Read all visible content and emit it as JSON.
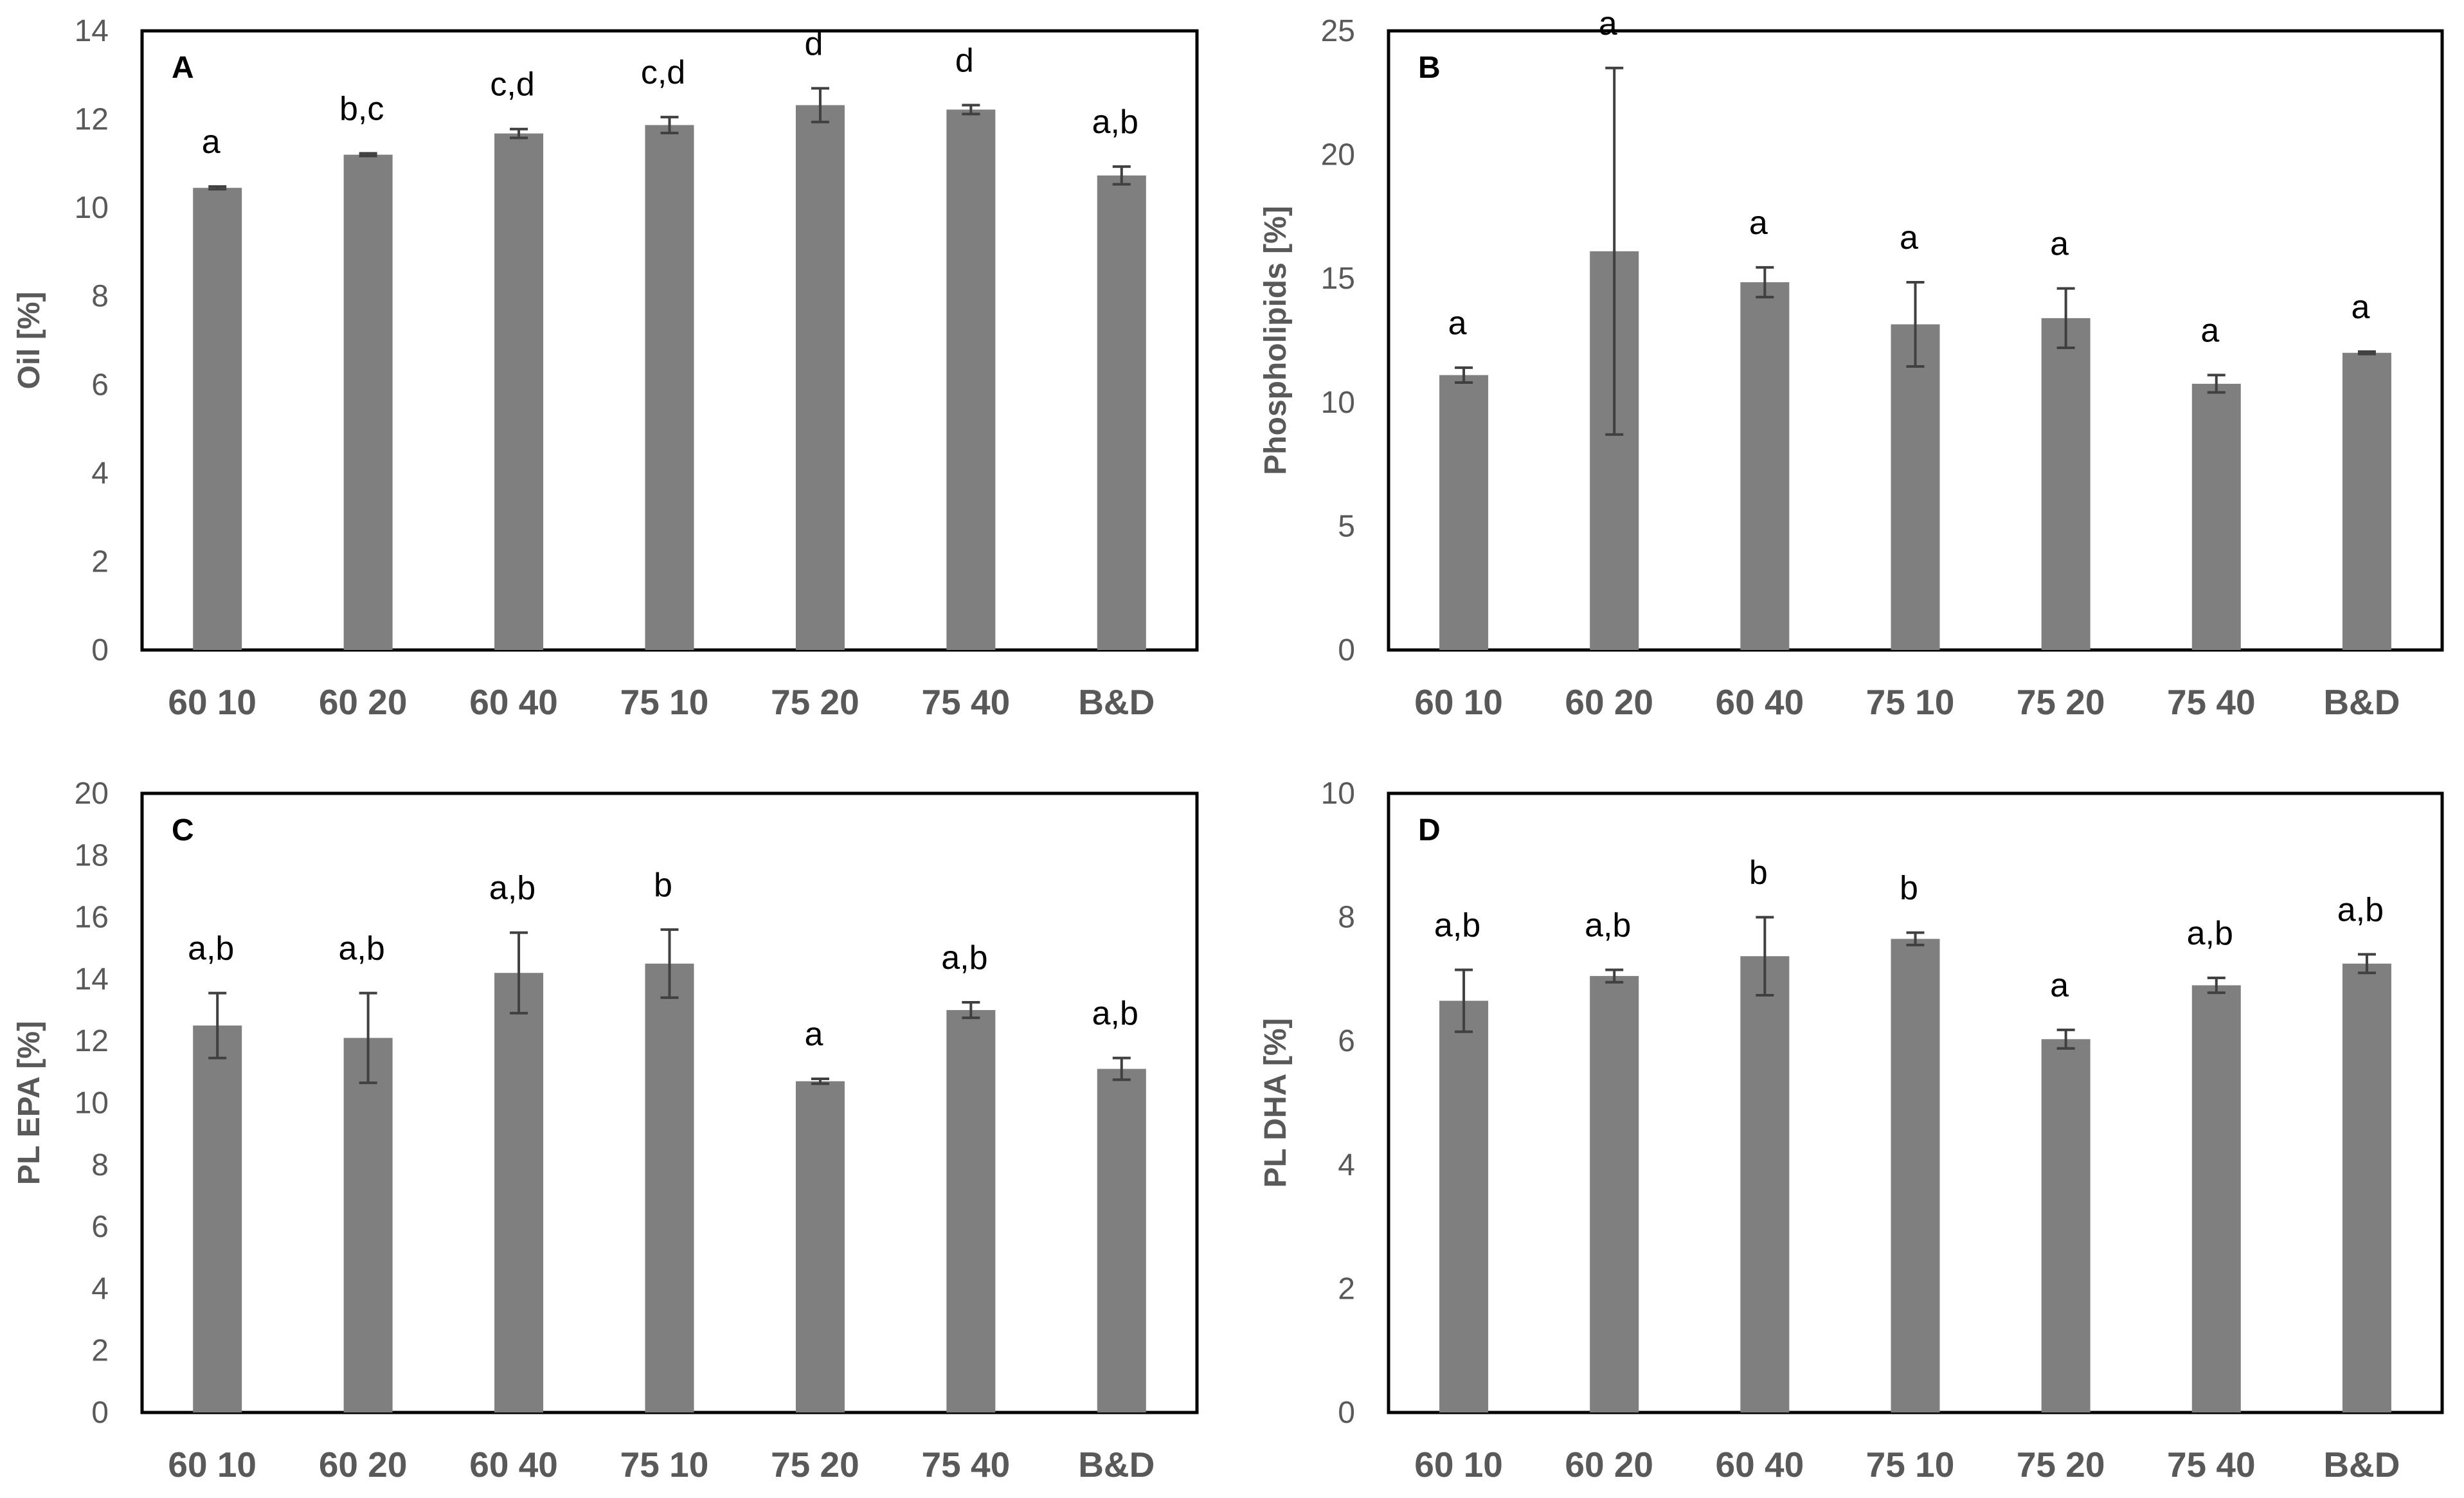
{
  "chart_data": [
    {
      "panel": "A",
      "type": "bar",
      "ylabel": "Oil [%]",
      "ylim": [
        0,
        14
      ],
      "yticks": [
        0,
        2,
        4,
        6,
        8,
        10,
        12,
        14
      ],
      "categories": [
        "60 10",
        "60 20",
        "60 40",
        "75 10",
        "75 20",
        "75 40",
        "B&D"
      ],
      "values": [
        10.45,
        11.2,
        11.68,
        11.87,
        12.32,
        12.22,
        10.73
      ],
      "errors": [
        0.03,
        0.03,
        0.1,
        0.18,
        0.38,
        0.1,
        0.2
      ],
      "labels": [
        "a",
        "b,c",
        "c,d",
        "c,d",
        "d",
        "d",
        "a,b"
      ],
      "bar_color": "#7f7f7f"
    },
    {
      "panel": "B",
      "type": "bar",
      "ylabel": "Phospholipids [%]",
      "ylim": [
        0,
        25
      ],
      "yticks": [
        0,
        5,
        10,
        15,
        20,
        25
      ],
      "categories": [
        "60 10",
        "60 20",
        "60 40",
        "75 10",
        "75 20",
        "75 40",
        "B&D"
      ],
      "values": [
        11.1,
        16.1,
        14.85,
        13.15,
        13.4,
        10.75,
        12.0
      ],
      "errors": [
        0.3,
        7.4,
        0.6,
        1.7,
        1.2,
        0.35,
        0.05
      ],
      "labels": [
        "a",
        "a",
        "a",
        "a",
        "a",
        "a",
        "a"
      ],
      "bar_color": "#7f7f7f"
    },
    {
      "panel": "C",
      "type": "bar",
      "ylabel": "PL EPA [%]",
      "ylim": [
        0,
        20
      ],
      "yticks": [
        0,
        2,
        4,
        6,
        8,
        10,
        12,
        14,
        16,
        18,
        20
      ],
      "categories": [
        "60 10",
        "60 20",
        "60 40",
        "75 10",
        "75 20",
        "75 40",
        "B&D"
      ],
      "values": [
        12.5,
        12.1,
        14.2,
        14.5,
        10.7,
        13.0,
        11.1
      ],
      "errors": [
        1.05,
        1.45,
        1.3,
        1.1,
        0.08,
        0.25,
        0.35
      ],
      "labels": [
        "a,b",
        "a,b",
        "a,b",
        "b",
        "a",
        "a,b",
        "a,b"
      ],
      "bar_color": "#7f7f7f"
    },
    {
      "panel": "D",
      "type": "bar",
      "ylabel": "PL DHA [%]",
      "ylim": [
        0,
        10
      ],
      "yticks": [
        0,
        2,
        4,
        6,
        8,
        10
      ],
      "categories": [
        "60 10",
        "60 20",
        "60 40",
        "75 10",
        "75 20",
        "75 40",
        "B&D"
      ],
      "values": [
        6.65,
        7.05,
        7.37,
        7.65,
        6.03,
        6.9,
        7.25
      ],
      "errors": [
        0.5,
        0.1,
        0.63,
        0.1,
        0.15,
        0.12,
        0.15
      ],
      "labels": [
        "a,b",
        "a,b",
        "b",
        "b",
        "a",
        "a,b",
        "a,b"
      ],
      "bar_color": "#7f7f7f"
    }
  ]
}
